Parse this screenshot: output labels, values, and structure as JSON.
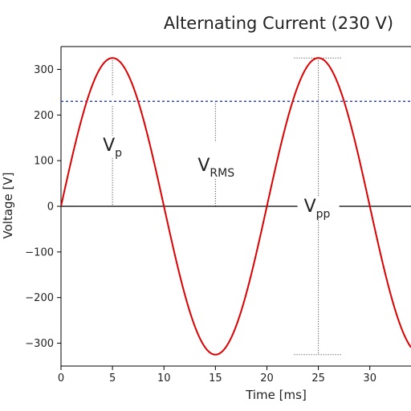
{
  "chart_data": {
    "type": "line",
    "title": "Alternating Current (230 V)",
    "xlabel": "Time [ms]",
    "ylabel": "Voltage [V]",
    "xlim": [
      0,
      34
    ],
    "ylim": [
      -350,
      350
    ],
    "x_ticks": [
      0,
      5,
      10,
      15,
      20,
      25,
      30
    ],
    "y_ticks": [
      -300,
      -200,
      -100,
      0,
      100,
      200,
      300
    ],
    "grid": false,
    "series": [
      {
        "kind": "sine",
        "amplitude": 325,
        "period_ms": 20,
        "color": "#dd0000",
        "x": [
          0,
          2.5,
          5,
          7.5,
          10,
          12.5,
          15,
          17.5,
          20,
          22.5,
          25,
          27.5,
          30,
          32.5,
          34
        ],
        "y": [
          0,
          230,
          325,
          230,
          0,
          -230,
          -325,
          -230,
          0,
          230,
          325,
          230,
          0,
          -230,
          -309
        ]
      }
    ],
    "reference_lines": [
      {
        "kind": "rms",
        "y": 230,
        "color": "#3344cc",
        "style": "dashed"
      },
      {
        "kind": "zero",
        "y": 0,
        "color": "#000000",
        "style": "solid"
      }
    ],
    "annotations": [
      {
        "main": "V",
        "sub": "p",
        "x": 5
      },
      {
        "main": "V",
        "sub": "RMS",
        "x": 15
      },
      {
        "main": "V",
        "sub": "pp",
        "x": 25
      }
    ]
  }
}
